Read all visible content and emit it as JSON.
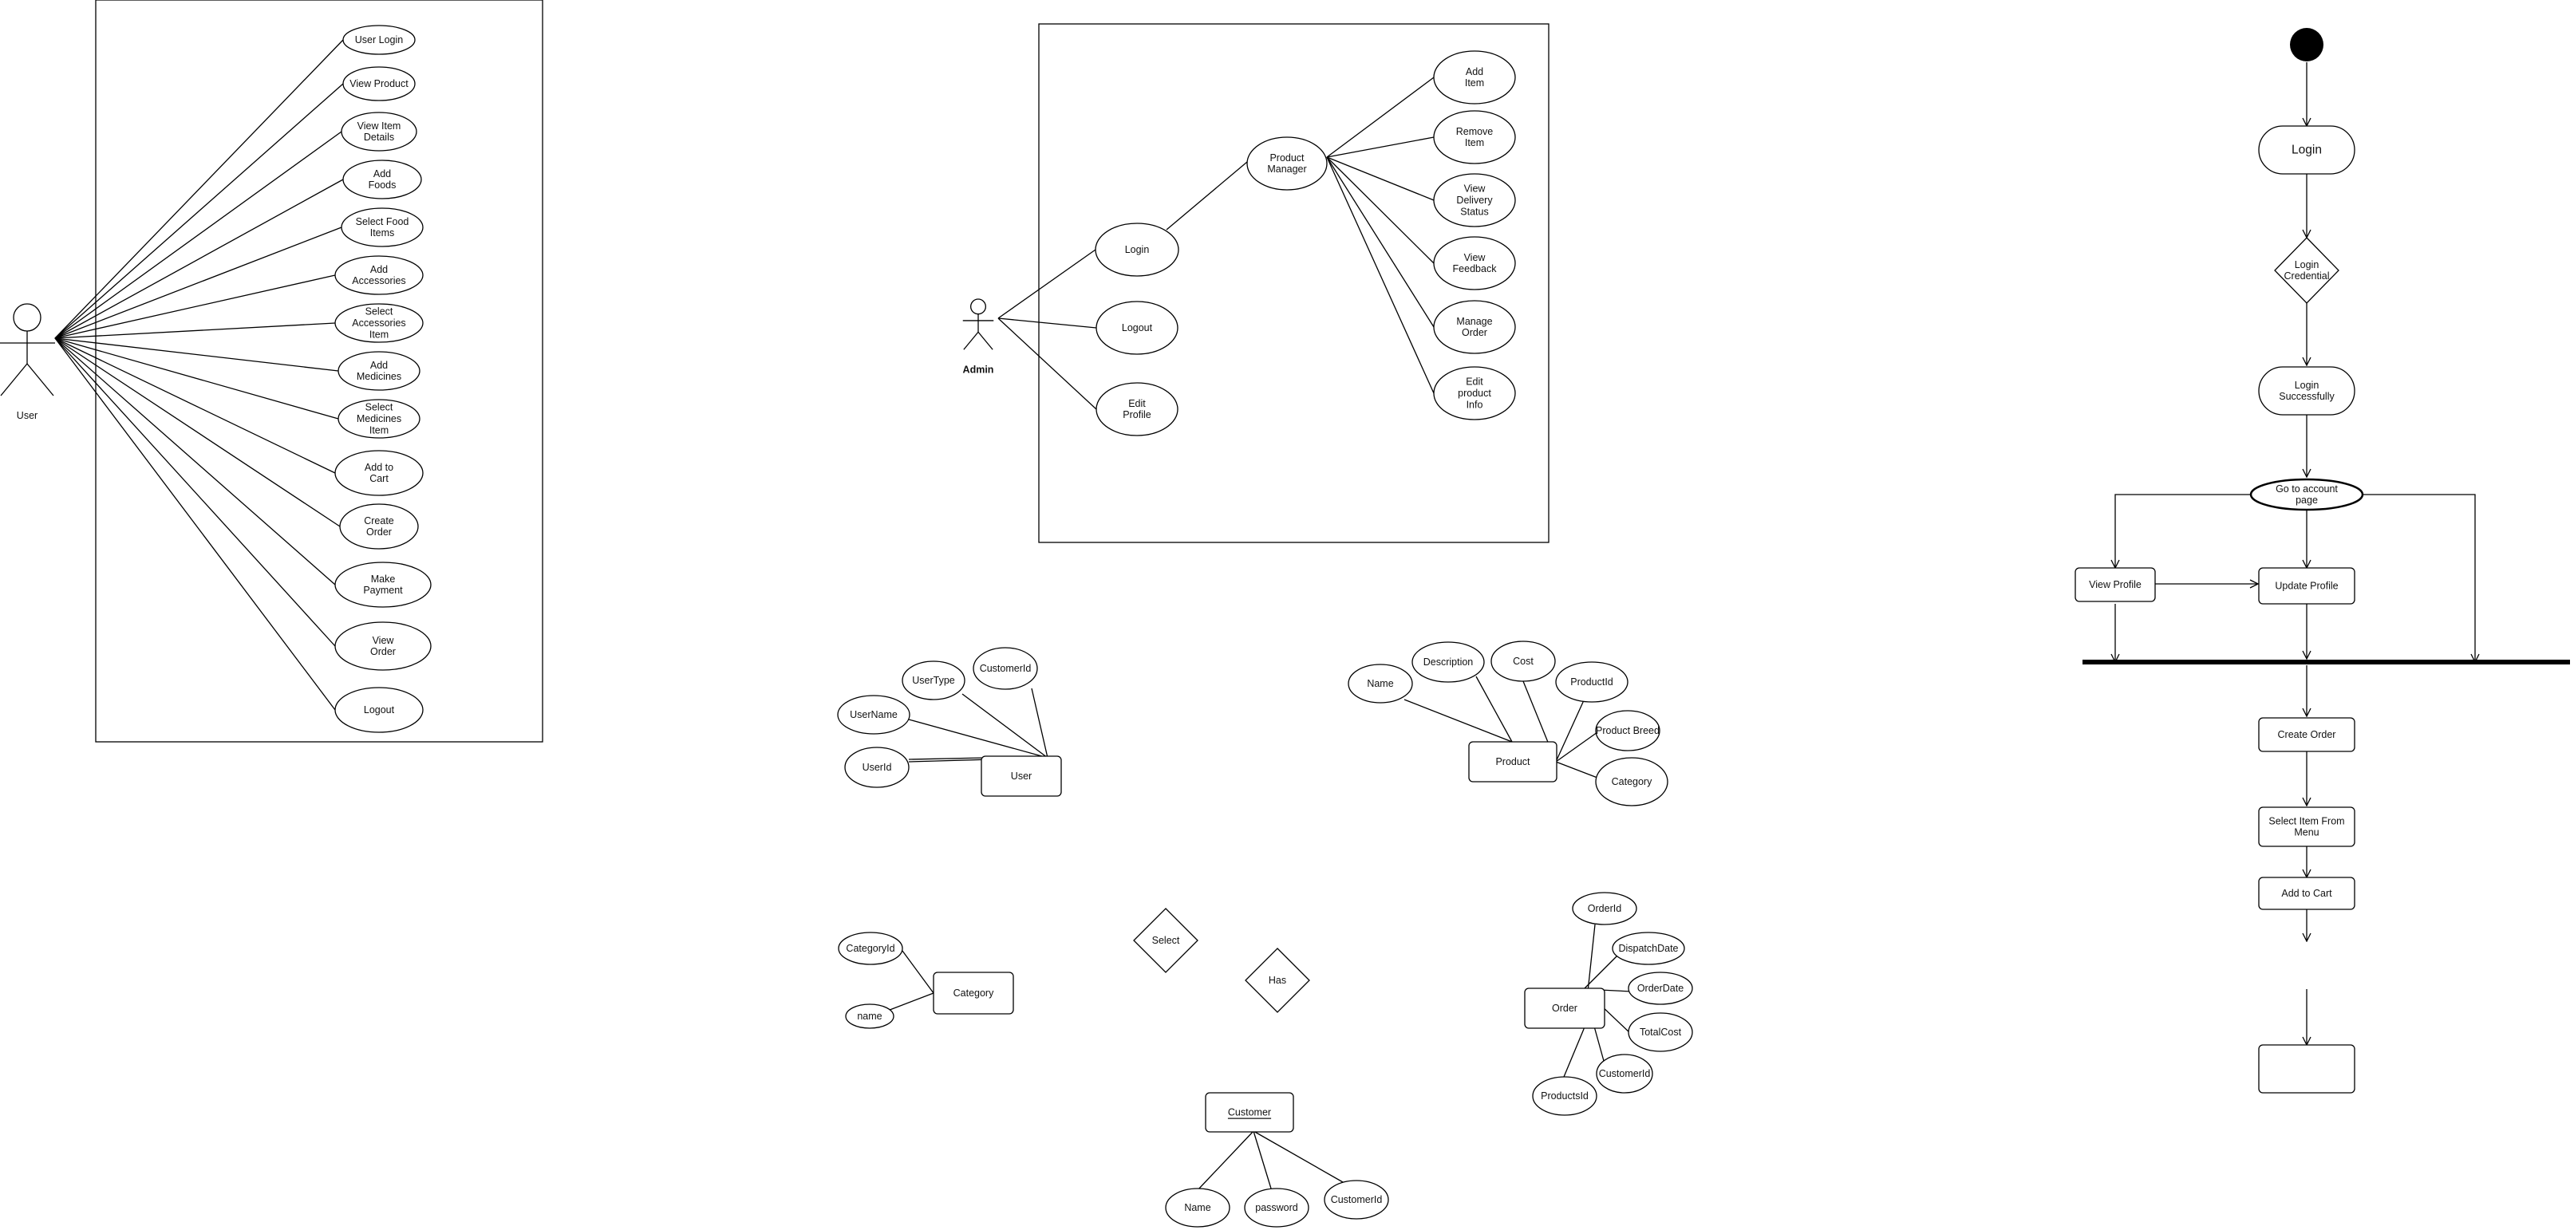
{
  "use_case_user": {
    "actor": "User",
    "cases": [
      [
        "User Login"
      ],
      [
        "View Product"
      ],
      [
        "View Item",
        "Details"
      ],
      [
        "Add",
        "Foods"
      ],
      [
        "Select Food",
        "Items"
      ],
      [
        "Add",
        "Accessories"
      ],
      [
        "Select",
        "Accessories",
        "Item"
      ],
      [
        "Add",
        "Medicines"
      ],
      [
        "Select",
        "Medicines",
        "Item"
      ],
      [
        "Add to",
        "Cart"
      ],
      [
        "Create",
        "Order"
      ],
      [
        "Make",
        "Payment"
      ],
      [
        "View",
        "Order"
      ],
      [
        "Logout"
      ]
    ]
  },
  "use_case_admin": {
    "actor": "Admin",
    "cases": [
      [
        "Login"
      ],
      [
        "Logout"
      ],
      [
        "Edit",
        "Profile"
      ]
    ],
    "manager": [
      "Product",
      "Manager"
    ],
    "manager_cases": [
      [
        "Add",
        "Item"
      ],
      [
        "Remove",
        "Item"
      ],
      [
        "View",
        "Delivery",
        "Status"
      ],
      [
        "View",
        "Feedback"
      ],
      [
        "Manage",
        "Order"
      ],
      [
        "Edit",
        "product",
        "Info"
      ]
    ]
  },
  "activity": {
    "nodes": {
      "login": "Login",
      "credential": [
        "Login",
        "Credential"
      ],
      "success": [
        "Login",
        "Successfully"
      ],
      "account": [
        "Go to account",
        "page"
      ],
      "view_profile": "View Profile",
      "update_profile": "Update Profile",
      "create_order": "Create Order",
      "select_item": [
        "Select Item From",
        "Menu"
      ],
      "add_cart": "Add to Cart"
    }
  },
  "er": {
    "user": {
      "entity": "User",
      "attrs": [
        "UserType",
        "CustomerId",
        "UserName",
        "UserId"
      ]
    },
    "product": {
      "entity": "Product",
      "attrs": [
        "Name",
        "Description",
        "Cost",
        "ProductId",
        "Product Breed",
        "Category"
      ]
    },
    "category": {
      "entity": "Category",
      "attrs": [
        "CategoryId",
        "name"
      ]
    },
    "order": {
      "entity": "Order",
      "attrs": [
        "OrderId",
        "DispatchDate",
        "OrderDate",
        "TotalCost",
        "CustomerId",
        "ProductsId"
      ]
    },
    "customer": {
      "entity": "Customer",
      "attrs": [
        "Name",
        "password",
        "CustomerId"
      ]
    },
    "relations": [
      "Select",
      "Has"
    ]
  }
}
